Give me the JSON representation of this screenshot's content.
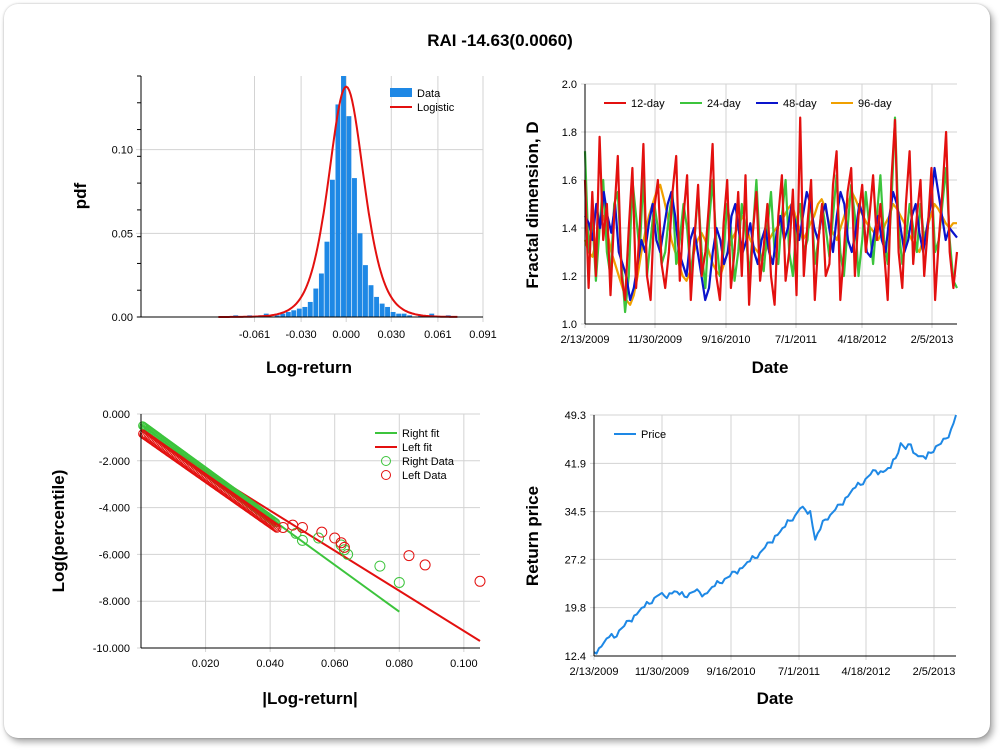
{
  "title": "RAI -14.63(0.0060)",
  "colors": {
    "blue": "#1e88e5",
    "red": "#e3100f",
    "green": "#3cc43c",
    "navy": "#0a14cc",
    "orange": "#f0a000"
  },
  "chart_data": [
    {
      "id": "pdf",
      "type": "bar",
      "xlabel": "Log-return",
      "ylabel": "pdf",
      "xticks": [
        "-0.061",
        "-0.030",
        "0.000",
        "0.030",
        "0.061",
        "0.091"
      ],
      "yticks": [
        "0.00",
        "0.05",
        "0.10"
      ],
      "xlim": [
        -0.1365,
        0.091
      ],
      "ylim": [
        0,
        0.144
      ],
      "legend": [
        "Data",
        "Logistic"
      ],
      "legend_position": "top-right",
      "bins_x": [
        -0.0735,
        -0.0642,
        -0.0569,
        -0.0532,
        -0.0459,
        -0.0422,
        -0.0385,
        -0.0349,
        -0.0312,
        -0.0275,
        -0.0239,
        -0.0202,
        -0.0165,
        -0.0128,
        -0.0092,
        -0.0055,
        -0.0018,
        0.0018,
        0.0055,
        0.0092,
        0.0128,
        0.0165,
        0.0202,
        0.0239,
        0.0275,
        0.0312,
        0.0349,
        0.0385,
        0.0422,
        0.0495,
        0.0569,
        0.0679
      ],
      "bins_y": [
        0.001,
        0.001,
        0.001,
        0.002,
        0.001,
        0.002,
        0.003,
        0.004,
        0.005,
        0.006,
        0.009,
        0.017,
        0.026,
        0.045,
        0.082,
        0.127,
        0.147,
        0.12,
        0.083,
        0.05,
        0.031,
        0.019,
        0.012,
        0.008,
        0.006,
        0.003,
        0.002,
        0.002,
        0.001,
        0.001,
        0.002,
        0.001
      ],
      "logistic": {
        "mu": 0.0,
        "s": 0.0079
      }
    },
    {
      "id": "fractal",
      "type": "line",
      "xlabel": "Date",
      "ylabel": "Fractal dimension, D",
      "xticks": [
        "2/13/2009",
        "11/30/2009",
        "9/16/2010",
        "7/1/2011",
        "4/18/2012",
        "2/5/2013"
      ],
      "yticks": [
        "1.0",
        "1.2",
        "1.4",
        "1.6",
        "1.8",
        "2.0"
      ],
      "ylim": [
        1.0,
        2.0
      ],
      "legend_position": "top",
      "series": [
        {
          "name": "12-day",
          "colorKey": "red",
          "values": [
            1.6,
            1.15,
            1.55,
            1.2,
            1.78,
            1.35,
            1.5,
            1.12,
            1.45,
            1.7,
            1.2,
            1.1,
            1.4,
            1.65,
            1.15,
            1.4,
            1.75,
            1.2,
            1.1,
            1.48,
            1.6,
            1.25,
            1.15,
            1.3,
            1.55,
            1.7,
            1.18,
            1.45,
            1.62,
            1.1,
            1.35,
            1.58,
            1.2,
            1.3,
            1.5,
            1.75,
            1.2,
            1.1,
            1.42,
            1.6,
            1.15,
            1.3,
            1.55,
            1.2,
            1.62,
            1.08,
            1.38,
            1.55,
            1.18,
            1.32,
            1.5,
            1.2,
            1.08,
            1.45,
            1.62,
            1.18,
            1.3,
            1.56,
            1.12,
            1.86,
            1.2,
            1.42,
            1.6,
            1.1,
            1.35,
            1.5,
            1.2,
            1.25,
            1.58,
            1.72,
            1.1,
            1.3,
            1.55,
            1.65,
            1.2,
            1.45,
            1.58,
            1.3,
            1.45,
            1.62,
            1.35,
            1.5,
            1.3,
            1.1,
            1.6,
            1.85,
            1.3,
            1.15,
            1.5,
            1.72,
            1.25,
            1.45,
            1.6,
            1.2,
            1.4,
            1.65,
            1.1,
            1.35,
            1.55,
            1.8,
            1.3,
            1.15,
            1.3
          ]
        },
        {
          "name": "24-day",
          "colorKey": "green",
          "values": [
            1.72,
            1.3,
            1.45,
            1.18,
            1.4,
            1.6,
            1.3,
            1.2,
            1.5,
            1.55,
            1.25,
            1.05,
            1.2,
            1.6,
            1.45,
            1.3,
            1.62,
            1.2,
            1.35,
            1.5,
            1.4,
            1.25,
            1.3,
            1.45,
            1.55,
            1.25,
            1.35,
            1.5,
            1.4,
            1.2,
            1.35,
            1.55,
            1.3,
            1.15,
            1.42,
            1.6,
            1.35,
            1.2,
            1.3,
            1.5,
            1.4,
            1.18,
            1.3,
            1.5,
            1.4,
            1.2,
            1.38,
            1.6,
            1.3,
            1.22,
            1.4,
            1.55,
            1.3,
            1.25,
            1.45,
            1.6,
            1.3,
            1.2,
            1.42,
            1.5,
            1.3,
            1.35,
            1.55,
            1.25,
            1.35,
            1.5,
            1.4,
            1.28,
            1.45,
            1.62,
            1.3,
            1.2,
            1.4,
            1.58,
            1.45,
            1.2,
            1.35,
            1.55,
            1.4,
            1.25,
            1.45,
            1.62,
            1.35,
            1.25,
            1.5,
            1.86,
            1.4,
            1.25,
            1.35,
            1.5,
            1.4,
            1.3,
            1.5,
            1.35,
            1.4,
            1.6,
            1.3,
            1.35,
            1.5,
            1.65,
            1.35,
            1.18,
            1.15
          ]
        },
        {
          "name": "48-day",
          "colorKey": "navy",
          "values": [
            1.45,
            1.42,
            1.35,
            1.5,
            1.4,
            1.55,
            1.45,
            1.38,
            1.5,
            1.3,
            1.25,
            1.2,
            1.1,
            1.15,
            1.25,
            1.35,
            1.3,
            1.42,
            1.5,
            1.35,
            1.3,
            1.4,
            1.5,
            1.55,
            1.45,
            1.3,
            1.25,
            1.2,
            1.35,
            1.4,
            1.3,
            1.2,
            1.1,
            1.15,
            1.3,
            1.4,
            1.35,
            1.25,
            1.3,
            1.45,
            1.5,
            1.38,
            1.3,
            1.35,
            1.42,
            1.3,
            1.25,
            1.35,
            1.4,
            1.3,
            1.25,
            1.38,
            1.45,
            1.35,
            1.4,
            1.5,
            1.42,
            1.35,
            1.45,
            1.55,
            1.5,
            1.4,
            1.35,
            1.45,
            1.5,
            1.4,
            1.3,
            1.45,
            1.55,
            1.5,
            1.35,
            1.3,
            1.38,
            1.5,
            1.45,
            1.3,
            1.28,
            1.38,
            1.45,
            1.35,
            1.3,
            1.45,
            1.55,
            1.5,
            1.4,
            1.3,
            1.35,
            1.45,
            1.5,
            1.38,
            1.3,
            1.4,
            1.5,
            1.65,
            1.55,
            1.45,
            1.35,
            1.4,
            1.38,
            1.36
          ]
        },
        {
          "name": "96-day",
          "colorKey": "orange",
          "values": [
            1.35,
            1.3,
            1.28,
            1.35,
            1.42,
            1.45,
            1.38,
            1.3,
            1.25,
            1.2,
            1.15,
            1.1,
            1.08,
            1.12,
            1.2,
            1.3,
            1.38,
            1.45,
            1.5,
            1.55,
            1.58,
            1.52,
            1.45,
            1.35,
            1.3,
            1.25,
            1.2,
            1.18,
            1.22,
            1.3,
            1.35,
            1.38,
            1.35,
            1.3,
            1.25,
            1.22,
            1.2,
            1.25,
            1.3,
            1.35,
            1.38,
            1.42,
            1.45,
            1.4,
            1.35,
            1.32,
            1.3,
            1.28,
            1.3,
            1.35,
            1.38,
            1.4,
            1.42,
            1.45,
            1.48,
            1.5,
            1.45,
            1.4,
            1.35,
            1.38,
            1.42,
            1.45,
            1.5,
            1.52,
            1.48,
            1.42,
            1.38,
            1.35,
            1.4,
            1.45,
            1.5,
            1.55,
            1.52,
            1.48,
            1.45,
            1.42,
            1.4,
            1.38,
            1.35,
            1.38,
            1.42,
            1.45,
            1.5,
            1.48,
            1.45,
            1.42,
            1.38,
            1.35,
            1.32,
            1.3,
            1.35,
            1.4,
            1.45,
            1.5,
            1.48,
            1.45,
            1.42,
            1.4,
            1.42,
            1.42
          ]
        }
      ]
    },
    {
      "id": "tail",
      "type": "scatter",
      "xlabel": "|Log-return|",
      "ylabel": "Log(percentile)",
      "xticks": [
        "0.020",
        "0.040",
        "0.060",
        "0.080",
        "0.100"
      ],
      "yticks": [
        "0.000",
        "-2.000",
        "-4.000",
        "-6.000",
        "-8.000",
        "-10.000"
      ],
      "xlim": [
        0,
        0.105
      ],
      "ylim": [
        -10,
        0
      ],
      "legend": [
        "Right fit",
        "Left fit",
        "Right Data",
        "Left Data"
      ],
      "legend_position": "top-right",
      "right_fit": {
        "x": [
          0,
          0.08
        ],
        "y": [
          -0.45,
          -8.45
        ]
      },
      "left_fit": {
        "x": [
          0,
          0.105
        ],
        "y": [
          -0.7,
          -9.7
        ]
      },
      "right_data": {
        "x": [
          0.048,
          0.05,
          0.055,
          0.062,
          0.063,
          0.064,
          0.074,
          0.08
        ],
        "y": [
          -5.1,
          -5.4,
          -5.3,
          -5.6,
          -5.8,
          -6.0,
          -6.5,
          -7.2
        ]
      },
      "left_data": {
        "x": [
          0.044,
          0.047,
          0.05,
          0.056,
          0.06,
          0.062,
          0.063,
          0.083,
          0.088,
          0.105
        ],
        "y": [
          -4.85,
          -4.75,
          -4.85,
          -5.05,
          -5.3,
          -5.5,
          -5.7,
          -6.05,
          -6.45,
          -7.15
        ]
      }
    },
    {
      "id": "price",
      "type": "line",
      "xlabel": "Date",
      "ylabel": "Return price",
      "xticks": [
        "2/13/2009",
        "11/30/2009",
        "9/16/2010",
        "7/1/2011",
        "4/18/2012",
        "2/5/2013"
      ],
      "yticks": [
        "12.4",
        "19.8",
        "27.2",
        "34.5",
        "41.9",
        "49.3"
      ],
      "ylim": [
        12.4,
        49.3
      ],
      "legend": [
        "Price"
      ],
      "legend_position": "top-left",
      "series": [
        {
          "name": "Price",
          "colorKey": "blue",
          "values": [
            13.0,
            13.6,
            14.5,
            15.3,
            15.2,
            16.3,
            17.0,
            17.8,
            18.6,
            19.3,
            19.9,
            20.4,
            21.3,
            21.8,
            21.6,
            22.0,
            22.3,
            21.8,
            21.5,
            22.0,
            22.3,
            22.2,
            21.9,
            22.5,
            23.1,
            23.6,
            24.2,
            24.6,
            25.3,
            25.8,
            26.3,
            26.9,
            27.4,
            28.2,
            29.0,
            29.8,
            30.8,
            31.4,
            32.2,
            33.1,
            33.9,
            35.0,
            34.8,
            34.6,
            30.2,
            31.8,
            33.3,
            34.0,
            34.8,
            35.6,
            36.6,
            37.4,
            38.2,
            38.6,
            39.5,
            40.2,
            40.8,
            40.7,
            40.8,
            41.2,
            42.7,
            45.0,
            44.1,
            44.8,
            43.3,
            43.0,
            42.6,
            43.5,
            44.5,
            44.9,
            45.7,
            47.1,
            49.3
          ]
        }
      ]
    }
  ]
}
